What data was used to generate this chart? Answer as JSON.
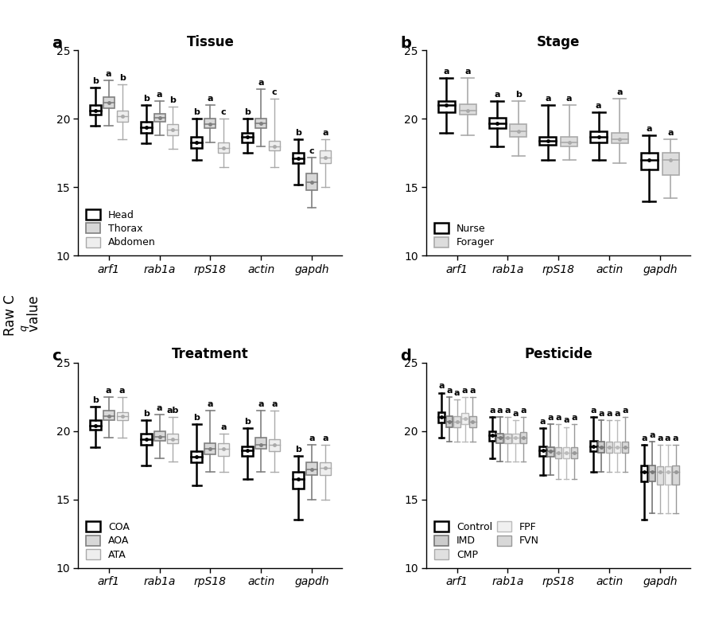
{
  "genes": [
    "arf1",
    "rab1a",
    "rpS18",
    "actin",
    "gapdh"
  ],
  "panel_titles": [
    "Tissue",
    "Stage",
    "Treatment",
    "Pesticide"
  ],
  "panel_labels": [
    "a",
    "b",
    "c",
    "d"
  ],
  "ylim": [
    10,
    25
  ],
  "yticks": [
    10,
    15,
    20,
    25
  ],
  "ylabel": "Raw C_q value",
  "tissue": {
    "series": [
      "Head",
      "Thorax",
      "Abdomen"
    ],
    "edge_colors": [
      "#000000",
      "#808080",
      "#aaaaaa"
    ],
    "fill_colors": [
      "#ffffff",
      "#d8d8d8",
      "#eeeeee"
    ],
    "linewidths": [
      1.8,
      1.2,
      1.0
    ],
    "boxes": {
      "Head": {
        "arf1": [
          19.5,
          20.3,
          20.6,
          21.0,
          22.3
        ],
        "rab1a": [
          18.2,
          19.0,
          19.4,
          19.8,
          21.0
        ],
        "rpS18": [
          17.0,
          17.9,
          18.3,
          18.7,
          20.0
        ],
        "actin": [
          17.5,
          18.3,
          18.7,
          19.0,
          20.0
        ],
        "gapdh": [
          15.2,
          16.8,
          17.1,
          17.5,
          18.5
        ]
      },
      "Thorax": {
        "arf1": [
          19.5,
          20.8,
          21.2,
          21.6,
          22.8
        ],
        "rab1a": [
          18.8,
          19.8,
          20.1,
          20.4,
          21.3
        ],
        "rpS18": [
          18.3,
          19.3,
          19.6,
          20.0,
          21.0
        ],
        "actin": [
          18.0,
          19.3,
          19.7,
          20.0,
          22.2
        ],
        "gapdh": [
          13.5,
          14.8,
          15.4,
          16.0,
          17.2
        ]
      },
      "Abdomen": {
        "arf1": [
          18.5,
          19.8,
          20.2,
          20.6,
          22.5
        ],
        "rab1a": [
          17.8,
          18.8,
          19.2,
          19.6,
          20.9
        ],
        "rpS18": [
          16.5,
          17.5,
          17.9,
          18.3,
          20.0
        ],
        "actin": [
          16.5,
          17.7,
          18.0,
          18.4,
          21.5
        ],
        "gapdh": [
          15.0,
          16.8,
          17.2,
          17.7,
          18.5
        ]
      }
    },
    "sig_labels": {
      "arf1": [
        "b",
        "a",
        "b"
      ],
      "rab1a": [
        "b",
        "a",
        "b"
      ],
      "rpS18": [
        "b",
        "a",
        "c"
      ],
      "actin": [
        "b",
        "a",
        "c"
      ],
      "gapdh": [
        "b",
        "c",
        "a"
      ]
    },
    "legend": [
      {
        "label": "Head",
        "ec": "#000000",
        "fc": "#ffffff",
        "lw": 1.8
      },
      {
        "label": "Thorax",
        "ec": "#808080",
        "fc": "#d8d8d8",
        "lw": 1.2
      },
      {
        "label": "Abdomen",
        "ec": "#aaaaaa",
        "fc": "#eeeeee",
        "lw": 1.0
      }
    ]
  },
  "stage": {
    "series": [
      "Nurse",
      "Forager"
    ],
    "edge_colors": [
      "#000000",
      "#aaaaaa"
    ],
    "fill_colors": [
      "#ffffff",
      "#dddddd"
    ],
    "linewidths": [
      1.8,
      1.2
    ],
    "boxes": {
      "Nurse": {
        "arf1": [
          19.0,
          20.5,
          21.0,
          21.3,
          23.0
        ],
        "rab1a": [
          18.0,
          19.3,
          19.7,
          20.1,
          21.3
        ],
        "rpS18": [
          17.0,
          18.1,
          18.4,
          18.7,
          21.0
        ],
        "actin": [
          17.0,
          18.3,
          18.7,
          19.1,
          20.5
        ],
        "gapdh": [
          14.0,
          16.3,
          17.0,
          17.5,
          18.8
        ]
      },
      "Forager": {
        "arf1": [
          18.8,
          20.3,
          20.6,
          21.1,
          23.0
        ],
        "rab1a": [
          17.3,
          18.7,
          19.1,
          19.6,
          21.3
        ],
        "rpS18": [
          17.0,
          18.0,
          18.3,
          18.7,
          21.0
        ],
        "actin": [
          16.8,
          18.2,
          18.5,
          19.0,
          21.5
        ],
        "gapdh": [
          14.2,
          15.9,
          17.0,
          17.5,
          18.5
        ]
      }
    },
    "sig_labels": {
      "arf1": [
        "a",
        "a"
      ],
      "rab1a": [
        "a",
        "b"
      ],
      "rpS18": [
        "a",
        "a"
      ],
      "actin": [
        "a",
        "a"
      ],
      "gapdh": [
        "a",
        "a"
      ]
    },
    "legend": [
      {
        "label": "Nurse",
        "ec": "#000000",
        "fc": "#ffffff",
        "lw": 1.8
      },
      {
        "label": "Forager",
        "ec": "#aaaaaa",
        "fc": "#dddddd",
        "lw": 1.2
      }
    ]
  },
  "treatment": {
    "series": [
      "COA",
      "AOA",
      "ATA"
    ],
    "edge_colors": [
      "#000000",
      "#808080",
      "#aaaaaa"
    ],
    "fill_colors": [
      "#ffffff",
      "#d8d8d8",
      "#eeeeee"
    ],
    "linewidths": [
      1.8,
      1.2,
      1.0
    ],
    "boxes": {
      "COA": {
        "arf1": [
          18.8,
          20.1,
          20.4,
          20.8,
          21.8
        ],
        "rab1a": [
          17.5,
          19.0,
          19.4,
          19.8,
          20.8
        ],
        "rpS18": [
          16.0,
          17.7,
          18.1,
          18.5,
          20.5
        ],
        "actin": [
          16.5,
          18.2,
          18.6,
          18.9,
          20.2
        ],
        "gapdh": [
          13.5,
          15.8,
          16.5,
          17.0,
          18.2
        ]
      },
      "AOA": {
        "arf1": [
          19.5,
          20.8,
          21.1,
          21.5,
          22.5
        ],
        "rab1a": [
          18.0,
          19.3,
          19.6,
          20.0,
          21.2
        ],
        "rpS18": [
          17.0,
          18.3,
          18.7,
          19.1,
          21.5
        ],
        "actin": [
          17.0,
          18.7,
          19.0,
          19.5,
          21.5
        ],
        "gapdh": [
          15.0,
          16.8,
          17.2,
          17.7,
          19.0
        ]
      },
      "ATA": {
        "arf1": [
          19.5,
          20.8,
          21.1,
          21.4,
          22.5
        ],
        "rab1a": [
          17.8,
          19.1,
          19.4,
          19.8,
          21.0
        ],
        "rpS18": [
          17.0,
          18.2,
          18.7,
          19.1,
          19.8
        ],
        "actin": [
          17.0,
          18.5,
          19.0,
          19.4,
          21.5
        ],
        "gapdh": [
          15.0,
          16.8,
          17.3,
          17.7,
          19.0
        ]
      }
    },
    "sig_labels": {
      "arf1": [
        "b",
        "a",
        "a"
      ],
      "rab1a": [
        "b",
        "a",
        "ab"
      ],
      "rpS18": [
        "b",
        "a",
        "a"
      ],
      "actin": [
        "b",
        "a",
        "a"
      ],
      "gapdh": [
        "b",
        "a",
        "a"
      ]
    },
    "legend": [
      {
        "label": "COA",
        "ec": "#000000",
        "fc": "#ffffff",
        "lw": 1.8
      },
      {
        "label": "AOA",
        "ec": "#808080",
        "fc": "#d8d8d8",
        "lw": 1.2
      },
      {
        "label": "ATA",
        "ec": "#aaaaaa",
        "fc": "#eeeeee",
        "lw": 1.0
      }
    ]
  },
  "pesticide": {
    "series": [
      "Control",
      "IMD",
      "CMP",
      "FPF",
      "FVN"
    ],
    "edge_colors": [
      "#000000",
      "#777777",
      "#aaaaaa",
      "#bbbbbb",
      "#999999"
    ],
    "fill_colors": [
      "#ffffff",
      "#cccccc",
      "#e0e0e0",
      "#f0f0f0",
      "#d8d8d8"
    ],
    "linewidths": [
      1.8,
      1.2,
      1.0,
      1.0,
      1.0
    ],
    "boxes": {
      "Control": {
        "arf1": [
          19.5,
          20.6,
          21.0,
          21.4,
          22.8
        ],
        "rab1a": [
          18.0,
          19.3,
          19.7,
          20.0,
          21.0
        ],
        "rpS18": [
          16.8,
          18.2,
          18.6,
          18.9,
          20.2
        ],
        "actin": [
          17.0,
          18.5,
          18.9,
          19.3,
          21.0
        ],
        "gapdh": [
          13.5,
          16.3,
          17.0,
          17.5,
          19.0
        ]
      },
      "IMD": {
        "arf1": [
          19.2,
          20.3,
          20.7,
          21.1,
          22.5
        ],
        "rab1a": [
          17.8,
          19.1,
          19.5,
          19.8,
          21.0
        ],
        "rpS18": [
          16.8,
          18.1,
          18.5,
          18.8,
          20.5
        ],
        "actin": [
          17.0,
          18.4,
          18.8,
          19.2,
          20.8
        ],
        "gapdh": [
          14.0,
          16.3,
          17.0,
          17.5,
          19.2
        ]
      },
      "CMP": {
        "arf1": [
          19.2,
          20.3,
          20.7,
          21.1,
          22.3
        ],
        "rab1a": [
          17.8,
          19.1,
          19.5,
          19.8,
          21.0
        ],
        "rpS18": [
          16.5,
          18.0,
          18.4,
          18.8,
          20.5
        ],
        "actin": [
          17.0,
          18.4,
          18.8,
          19.2,
          20.8
        ],
        "gapdh": [
          14.0,
          16.1,
          17.0,
          17.4,
          19.0
        ]
      },
      "FPF": {
        "arf1": [
          19.2,
          20.5,
          20.9,
          21.3,
          22.5
        ],
        "rab1a": [
          17.8,
          19.1,
          19.5,
          19.8,
          20.8
        ],
        "rpS18": [
          16.5,
          18.0,
          18.4,
          18.8,
          20.3
        ],
        "actin": [
          17.0,
          18.4,
          18.8,
          19.2,
          20.8
        ],
        "gapdh": [
          14.0,
          16.1,
          17.0,
          17.4,
          19.0
        ]
      },
      "FVN": {
        "arf1": [
          19.2,
          20.3,
          20.7,
          21.1,
          22.5
        ],
        "rab1a": [
          17.8,
          19.1,
          19.5,
          19.9,
          21.0
        ],
        "rpS18": [
          16.5,
          18.0,
          18.4,
          18.8,
          20.5
        ],
        "actin": [
          17.0,
          18.4,
          18.8,
          19.2,
          21.0
        ],
        "gapdh": [
          14.0,
          16.1,
          17.0,
          17.5,
          19.0
        ]
      }
    },
    "sig_labels": {
      "arf1": [
        "a",
        "a",
        "a",
        "a",
        "a"
      ],
      "rab1a": [
        "a",
        "a",
        "a",
        "a",
        "a"
      ],
      "rpS18": [
        "a",
        "a",
        "a",
        "a",
        "a"
      ],
      "actin": [
        "a",
        "a",
        "a",
        "a",
        "a"
      ],
      "gapdh": [
        "a",
        "a",
        "a",
        "a",
        "a"
      ]
    },
    "legend": [
      {
        "label": "Control",
        "ec": "#000000",
        "fc": "#ffffff",
        "lw": 1.8
      },
      {
        "label": "IMD",
        "ec": "#777777",
        "fc": "#cccccc",
        "lw": 1.2
      },
      {
        "label": "CMP",
        "ec": "#aaaaaa",
        "fc": "#e0e0e0",
        "lw": 1.0
      },
      {
        "label": "FPF",
        "ec": "#bbbbbb",
        "fc": "#f0f0f0",
        "lw": 1.0
      },
      {
        "label": "FVN",
        "ec": "#999999",
        "fc": "#d8d8d8",
        "lw": 1.0
      }
    ]
  }
}
